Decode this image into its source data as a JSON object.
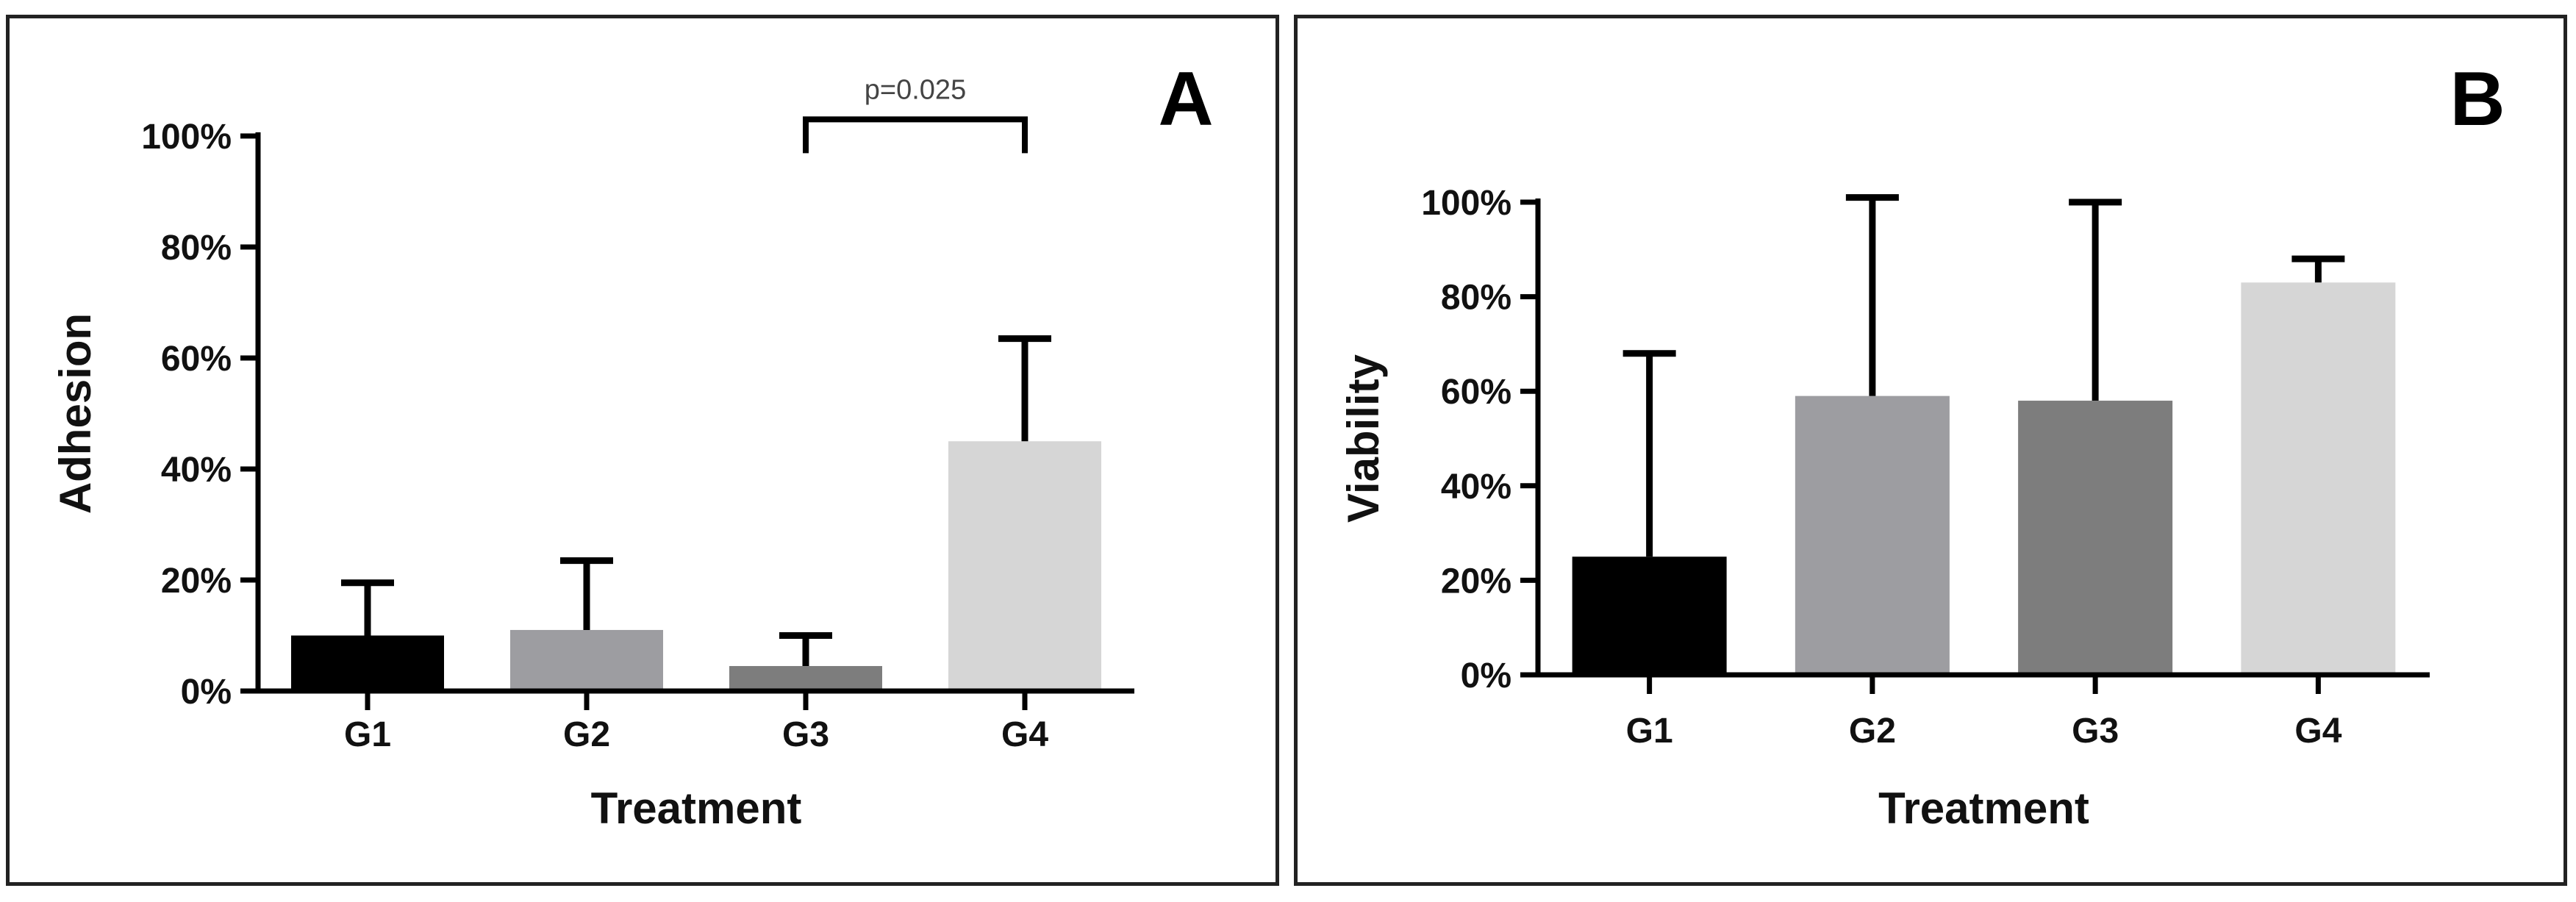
{
  "chart_data": [
    {
      "type": "bar",
      "panel_label": "A",
      "title": "",
      "xlabel": "Treatment",
      "ylabel": "Adhesion",
      "categories": [
        "G1",
        "G2",
        "G3",
        "G4"
      ],
      "values": [
        10,
        11,
        4.5,
        45
      ],
      "error_upper": [
        19.5,
        23.5,
        10,
        63.5
      ],
      "colors": [
        "#000000",
        "#9d9da1",
        "#7d7d7d",
        "#d6d6d6"
      ],
      "ylim": [
        0,
        100
      ],
      "yticks": [
        0,
        20,
        40,
        60,
        80,
        100
      ],
      "ytick_labels": [
        "0%",
        "20%",
        "40%",
        "60%",
        "80%",
        "100%"
      ],
      "annotations": [
        {
          "text": "p=0.025",
          "from": "G3",
          "to": "G4",
          "y": 103
        }
      ],
      "grid": false,
      "legend": "none"
    },
    {
      "type": "bar",
      "panel_label": "B",
      "title": "",
      "xlabel": "Treatment",
      "ylabel": "Viability",
      "categories": [
        "G1",
        "G2",
        "G3",
        "G4"
      ],
      "values": [
        25,
        59,
        58,
        83
      ],
      "error_upper": [
        68,
        101,
        100,
        88
      ],
      "colors": [
        "#000000",
        "#9d9da1",
        "#7d7d7d",
        "#d6d6d6"
      ],
      "ylim": [
        0,
        100
      ],
      "yticks": [
        0,
        20,
        40,
        60,
        80,
        100
      ],
      "ytick_labels": [
        "0%",
        "20%",
        "40%",
        "60%",
        "80%",
        "100%"
      ],
      "annotations": [],
      "grid": false,
      "legend": "none"
    }
  ]
}
